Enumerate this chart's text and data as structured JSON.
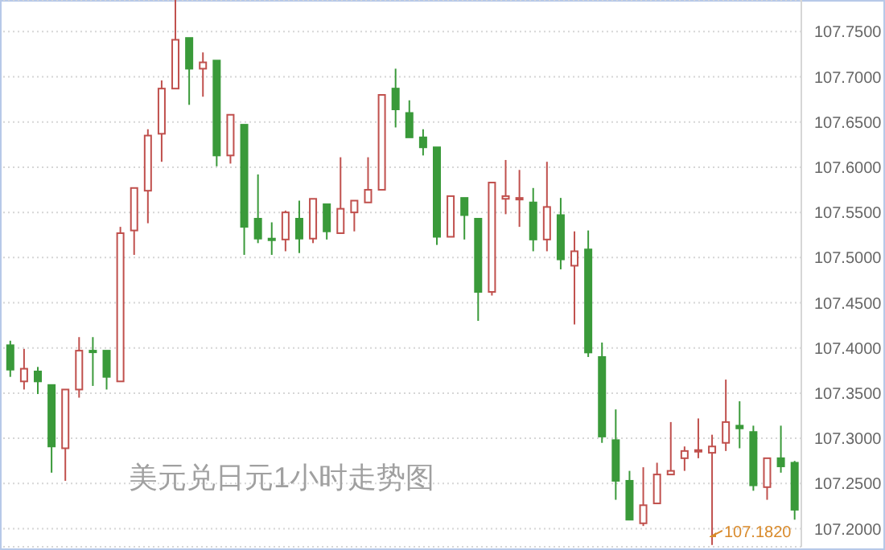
{
  "chart_data": {
    "type": "candlestick",
    "title": "美元兑日元1小时走势图",
    "categories": [
      null,
      null,
      null,
      null,
      null,
      null,
      null,
      null,
      null,
      null,
      null,
      null,
      null,
      null,
      null,
      null,
      null,
      null,
      null,
      null,
      null,
      null,
      null,
      null,
      null,
      null,
      null,
      null,
      null,
      null,
      null,
      null,
      null,
      null,
      null,
      null,
      null,
      null,
      null,
      null,
      null,
      null,
      null,
      null,
      null,
      null,
      null,
      null,
      null,
      null,
      null,
      null,
      null,
      null,
      null,
      null,
      null,
      null
    ],
    "ohlc": [
      [
        107.403,
        107.408,
        107.368,
        107.376
      ],
      [
        107.363,
        107.399,
        107.354,
        107.377
      ],
      [
        107.374,
        107.379,
        107.349,
        107.363
      ],
      [
        107.359,
        107.359,
        107.262,
        107.291
      ],
      [
        107.289,
        107.354,
        107.253,
        107.354
      ],
      [
        107.354,
        107.412,
        107.345,
        107.397
      ],
      [
        107.397,
        107.412,
        107.358,
        107.396
      ],
      [
        107.397,
        107.397,
        107.354,
        107.368
      ],
      [
        107.363,
        107.534,
        107.363,
        107.527
      ],
      [
        107.53,
        107.577,
        107.503,
        107.577
      ],
      [
        107.574,
        107.642,
        107.538,
        107.635
      ],
      [
        107.637,
        107.696,
        107.606,
        107.687
      ],
      [
        107.687,
        107.785,
        107.687,
        107.741
      ],
      [
        107.743,
        107.743,
        107.669,
        107.709
      ],
      [
        107.709,
        107.727,
        107.678,
        107.716
      ],
      [
        107.718,
        107.718,
        107.601,
        107.613
      ],
      [
        107.613,
        107.658,
        107.604,
        107.658
      ],
      [
        107.647,
        107.647,
        107.503,
        107.534
      ],
      [
        107.543,
        107.592,
        107.516,
        107.521
      ],
      [
        107.521,
        107.539,
        107.503,
        107.52
      ],
      [
        107.52,
        107.552,
        107.507,
        107.55
      ],
      [
        107.543,
        107.563,
        107.505,
        107.521
      ],
      [
        107.521,
        107.565,
        107.516,
        107.565
      ],
      [
        107.559,
        107.559,
        107.52,
        107.529
      ],
      [
        107.527,
        107.611,
        107.527,
        107.554
      ],
      [
        107.55,
        107.563,
        107.529,
        107.563
      ],
      [
        107.561,
        107.611,
        107.561,
        107.575
      ],
      [
        107.575,
        107.68,
        107.575,
        107.68
      ],
      [
        107.687,
        107.709,
        107.644,
        107.664
      ],
      [
        107.66,
        107.674,
        107.633,
        107.633
      ],
      [
        107.633,
        107.642,
        107.613,
        107.622
      ],
      [
        107.622,
        107.622,
        107.514,
        107.523
      ],
      [
        107.523,
        107.568,
        107.523,
        107.568
      ],
      [
        107.566,
        107.566,
        107.52,
        107.547
      ],
      [
        107.543,
        107.543,
        107.43,
        107.462
      ],
      [
        107.462,
        107.583,
        107.458,
        107.583
      ],
      [
        107.565,
        107.608,
        107.548,
        107.568
      ],
      [
        107.565,
        107.597,
        107.534,
        107.566
      ],
      [
        107.561,
        107.577,
        107.507,
        107.52
      ],
      [
        107.52,
        107.606,
        107.507,
        107.556
      ],
      [
        107.547,
        107.566,
        107.487,
        107.498
      ],
      [
        107.491,
        107.529,
        107.426,
        107.507
      ],
      [
        107.509,
        107.53,
        107.39,
        107.395
      ],
      [
        107.39,
        107.406,
        107.295,
        107.302
      ],
      [
        107.298,
        107.332,
        107.232,
        107.253
      ],
      [
        107.253,
        107.264,
        107.21,
        107.21
      ],
      [
        107.206,
        107.268,
        107.203,
        107.226
      ],
      [
        107.228,
        107.273,
        107.228,
        107.26
      ],
      [
        107.26,
        107.318,
        107.26,
        107.264
      ],
      [
        107.278,
        107.291,
        107.264,
        107.286
      ],
      [
        107.286,
        107.322,
        107.278,
        107.287
      ],
      [
        107.284,
        107.304,
        107.182,
        107.291
      ],
      [
        107.295,
        107.365,
        107.286,
        107.318
      ],
      [
        107.314,
        107.341,
        107.289,
        107.311
      ],
      [
        107.307,
        107.314,
        107.242,
        107.248
      ],
      [
        107.246,
        107.278,
        107.232,
        107.278
      ],
      [
        107.278,
        107.314,
        107.262,
        107.269
      ],
      [
        107.273,
        107.275,
        107.21,
        107.221
      ]
    ],
    "colors": [
      "#3a9a3a",
      "#c0504d",
      "#3a9a3a",
      "#3a9a3a",
      "#c0504d",
      "#c0504d",
      "#3a9a3a",
      "#3a9a3a",
      "#c0504d",
      "#c0504d",
      "#c0504d",
      "#c0504d",
      "#c0504d",
      "#3a9a3a",
      "#c0504d",
      "#3a9a3a",
      "#c0504d",
      "#3a9a3a",
      "#3a9a3a",
      "#3a9a3a",
      "#c0504d",
      "#3a9a3a",
      "#c0504d",
      "#3a9a3a",
      "#c0504d",
      "#c0504d",
      "#c0504d",
      "#c0504d",
      "#3a9a3a",
      "#3a9a3a",
      "#3a9a3a",
      "#3a9a3a",
      "#c0504d",
      "#3a9a3a",
      "#3a9a3a",
      "#c0504d",
      "#c0504d",
      "#c0504d",
      "#3a9a3a",
      "#c0504d",
      "#3a9a3a",
      "#c0504d",
      "#3a9a3a",
      "#3a9a3a",
      "#3a9a3a",
      "#3a9a3a",
      "#c0504d",
      "#c0504d",
      "#c0504d",
      "#c0504d",
      "#c0504d",
      "#c0504d",
      "#c0504d",
      "#3a9a3a",
      "#3a9a3a",
      "#c0504d",
      "#3a9a3a",
      "#3a9a3a"
    ],
    "ylim": [
      107.18,
      107.785
    ],
    "yticks": [
      {
        "value": 107.2,
        "label": "107.2000"
      },
      {
        "value": 107.25,
        "label": "107.2500"
      },
      {
        "value": 107.3,
        "label": "107.3000"
      },
      {
        "value": 107.35,
        "label": "107.3500"
      },
      {
        "value": 107.4,
        "label": "107.4000"
      },
      {
        "value": 107.45,
        "label": "107.4500"
      },
      {
        "value": 107.5,
        "label": "107.5000"
      },
      {
        "value": 107.55,
        "label": "107.5500"
      },
      {
        "value": 107.6,
        "label": "107.6000"
      },
      {
        "value": 107.65,
        "label": "107.6500"
      },
      {
        "value": 107.7,
        "label": "107.7000"
      },
      {
        "value": 107.75,
        "label": "107.7500"
      }
    ],
    "grid": "y",
    "tick_labels": "y",
    "annotations": [
      "107.1820"
    ]
  }
}
